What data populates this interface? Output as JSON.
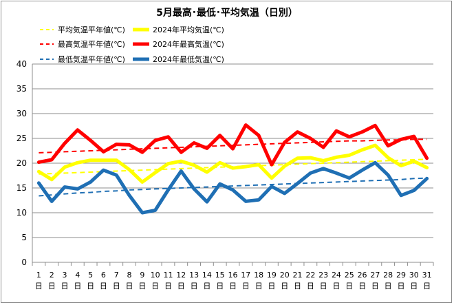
{
  "chart_data": {
    "type": "line",
    "title": "5月最高･最低･平均気温（日別）",
    "x_unit": "日",
    "xlabel": "",
    "ylabel": "",
    "ylim": [
      0,
      40
    ],
    "yticks": [
      0,
      5,
      10,
      15,
      20,
      25,
      30,
      35,
      40
    ],
    "grid": "horizontal",
    "legend_position": "top-left",
    "categories": [
      "1",
      "2",
      "3",
      "4",
      "5",
      "6",
      "7",
      "8",
      "9",
      "10",
      "11",
      "12",
      "13",
      "14",
      "15",
      "16",
      "17",
      "18",
      "19",
      "20",
      "21",
      "22",
      "23",
      "24",
      "25",
      "26",
      "27",
      "28",
      "29",
      "30",
      "31"
    ],
    "series": [
      {
        "name": "平均気温平年値(℃)",
        "color": "#ffff00",
        "style": "dashed",
        "values": [
          17.8,
          17.9,
          18.0,
          18.1,
          18.2,
          18.3,
          18.4,
          18.5,
          18.6,
          18.7,
          18.8,
          18.9,
          19.0,
          19.1,
          19.2,
          19.3,
          19.4,
          19.5,
          19.6,
          19.7,
          19.8,
          19.9,
          20.0,
          20.1,
          20.2,
          20.3,
          20.4,
          20.5,
          20.6,
          20.7,
          20.8
        ]
      },
      {
        "name": "2024年平均気温(℃)",
        "color": "#ffff00",
        "style": "solid",
        "values": [
          18.3,
          16.7,
          19.2,
          20.1,
          20.6,
          20.6,
          20.6,
          18.7,
          16.2,
          18.1,
          19.9,
          20.4,
          19.6,
          18.2,
          20.1,
          19.0,
          19.3,
          19.7,
          17.0,
          19.4,
          21.0,
          21.1,
          20.5,
          21.2,
          21.6,
          22.7,
          23.6,
          21.1,
          19.5,
          20.4,
          19.1
        ]
      },
      {
        "name": "最高気温平年値(℃)",
        "color": "#ff0000",
        "style": "dashed",
        "values": [
          22.1,
          22.2,
          22.3,
          22.4,
          22.5,
          22.6,
          22.7,
          22.8,
          22.9,
          23.0,
          23.1,
          23.2,
          23.3,
          23.4,
          23.5,
          23.6,
          23.7,
          23.8,
          23.9,
          24.0,
          24.1,
          24.2,
          24.3,
          24.4,
          24.5,
          24.5,
          24.6,
          24.7,
          24.7,
          24.8,
          24.8
        ]
      },
      {
        "name": "2024年最高気温(℃)",
        "color": "#ff0000",
        "style": "solid",
        "values": [
          20.2,
          20.7,
          24.0,
          26.7,
          24.6,
          22.3,
          23.8,
          23.7,
          22.2,
          24.6,
          25.3,
          22.2,
          24.1,
          23.0,
          25.6,
          22.9,
          27.7,
          25.6,
          19.7,
          24.2,
          26.3,
          25.0,
          23.2,
          26.5,
          25.3,
          26.3,
          27.6,
          23.5,
          24.8,
          25.4,
          21.0
        ]
      },
      {
        "name": "最低気温平年値(℃)",
        "color": "#1f6fb4",
        "style": "dashed",
        "values": [
          13.4,
          13.6,
          13.8,
          14.0,
          14.1,
          14.3,
          14.4,
          14.6,
          14.7,
          14.8,
          14.9,
          15.0,
          15.1,
          15.2,
          15.3,
          15.4,
          15.5,
          15.6,
          15.7,
          15.8,
          15.9,
          16.0,
          16.1,
          16.2,
          16.3,
          16.4,
          16.5,
          16.6,
          16.7,
          16.9,
          17.0
        ]
      },
      {
        "name": "2024年最低気温(℃)",
        "color": "#1f6fb4",
        "style": "solid",
        "values": [
          16.0,
          12.3,
          15.2,
          14.8,
          16.2,
          18.6,
          17.6,
          13.5,
          10.0,
          10.5,
          14.6,
          18.4,
          14.8,
          12.2,
          15.8,
          14.6,
          12.3,
          12.6,
          15.3,
          13.9,
          15.9,
          18.0,
          18.9,
          18.0,
          17.0,
          18.6,
          20.1,
          17.6,
          13.5,
          14.5,
          16.9
        ]
      }
    ]
  }
}
